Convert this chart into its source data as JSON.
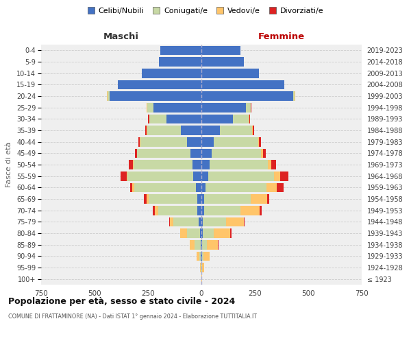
{
  "age_groups": [
    "100+",
    "95-99",
    "90-94",
    "85-89",
    "80-84",
    "75-79",
    "70-74",
    "65-69",
    "60-64",
    "55-59",
    "50-54",
    "45-49",
    "40-44",
    "35-39",
    "30-34",
    "25-29",
    "20-24",
    "15-19",
    "10-14",
    "5-9",
    "0-4"
  ],
  "birth_years": [
    "≤ 1923",
    "1924-1928",
    "1929-1933",
    "1934-1938",
    "1939-1943",
    "1944-1948",
    "1949-1953",
    "1954-1958",
    "1959-1963",
    "1964-1968",
    "1969-1973",
    "1974-1978",
    "1979-1983",
    "1984-1988",
    "1989-1993",
    "1994-1998",
    "1999-2003",
    "2004-2008",
    "2009-2013",
    "2014-2018",
    "2019-2023"
  ],
  "male_celibi": [
    0,
    0,
    2,
    4,
    8,
    12,
    20,
    18,
    25,
    38,
    42,
    52,
    68,
    95,
    165,
    225,
    430,
    390,
    278,
    198,
    192
  ],
  "male_coniugati": [
    0,
    2,
    8,
    28,
    58,
    118,
    182,
    228,
    290,
    308,
    275,
    248,
    218,
    158,
    78,
    28,
    8,
    0,
    0,
    0,
    0
  ],
  "male_vedovi": [
    0,
    5,
    12,
    22,
    32,
    18,
    16,
    10,
    8,
    4,
    4,
    2,
    2,
    2,
    2,
    2,
    5,
    0,
    0,
    0,
    0
  ],
  "male_divorziati": [
    0,
    0,
    0,
    0,
    2,
    4,
    8,
    14,
    10,
    28,
    18,
    10,
    8,
    9,
    4,
    2,
    0,
    0,
    0,
    0,
    0
  ],
  "female_nubili": [
    0,
    0,
    2,
    4,
    6,
    8,
    12,
    12,
    18,
    32,
    38,
    48,
    58,
    88,
    148,
    208,
    428,
    388,
    268,
    198,
    182
  ],
  "female_coniugate": [
    0,
    2,
    8,
    22,
    52,
    108,
    172,
    218,
    288,
    308,
    272,
    232,
    208,
    148,
    72,
    22,
    8,
    0,
    0,
    0,
    0
  ],
  "female_vedove": [
    2,
    10,
    28,
    52,
    78,
    82,
    88,
    78,
    48,
    28,
    16,
    10,
    4,
    4,
    4,
    2,
    2,
    0,
    0,
    0,
    0
  ],
  "female_divorziate": [
    0,
    0,
    0,
    2,
    4,
    4,
    10,
    8,
    32,
    38,
    22,
    10,
    10,
    7,
    4,
    2,
    0,
    0,
    0,
    0,
    0
  ],
  "color_celibi": "#4472c4",
  "color_coniugati": "#c8d9a5",
  "color_vedovi": "#ffc56a",
  "color_divorziati": "#dd2222",
  "xlim": 750,
  "title": "Popolazione per età, sesso e stato civile - 2024",
  "subtitle": "COMUNE DI FRATTAMINORE (NA) - Dati ISTAT 1° gennaio 2024 - Elaborazione TUTTITALIA.IT",
  "label_maschi": "Maschi",
  "label_femmine": "Femmine",
  "ylabel_left": "Fasce di età",
  "legend_labels": [
    "Celibi/Nubili",
    "Coniugati/e",
    "Vedovi/e",
    "Divorziati/e"
  ],
  "bg_color": "#ffffff",
  "plot_bg_color": "#efefef"
}
